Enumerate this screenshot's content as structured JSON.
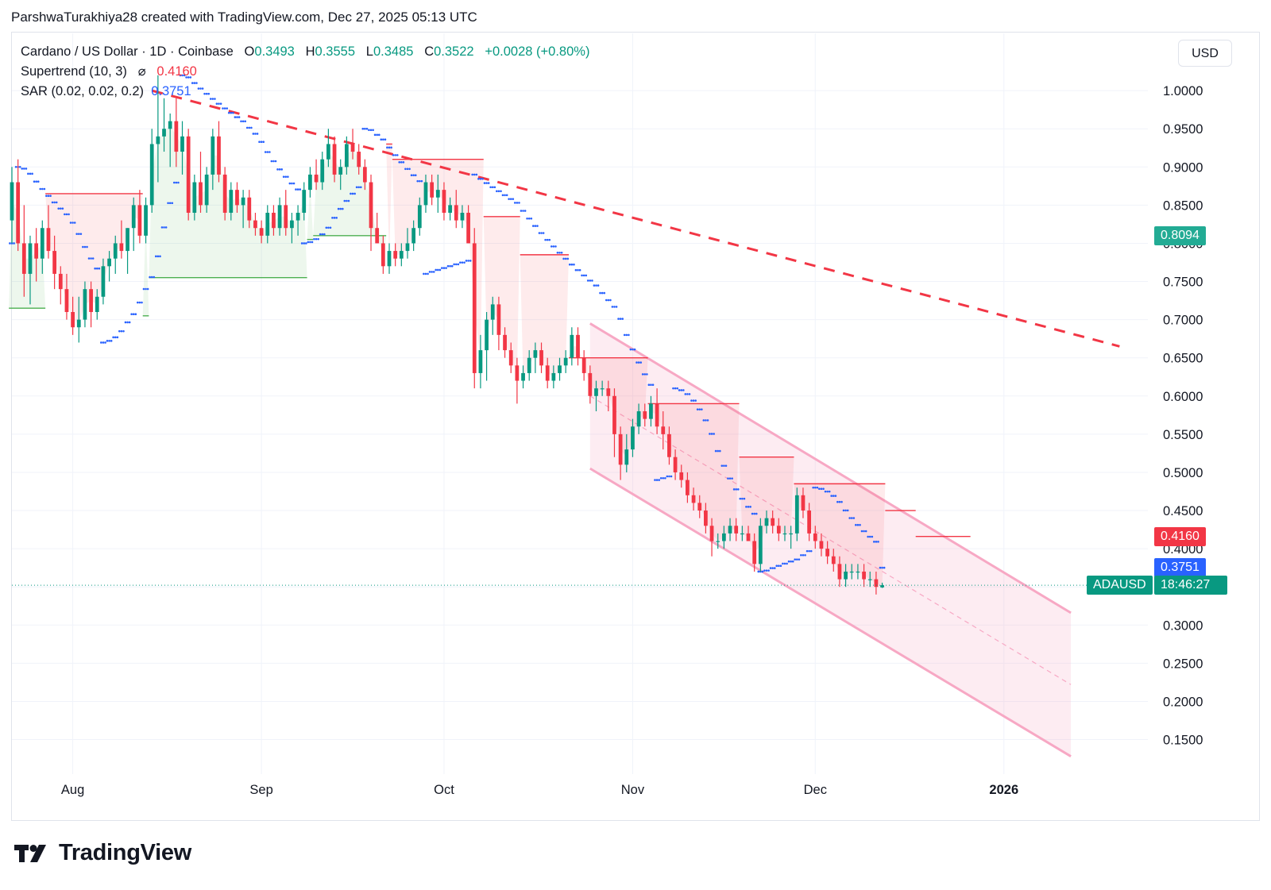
{
  "header": {
    "credit": "ParshwaTurakhiya28 created with TradingView.com, Dec 27, 2025 05:13 UTC"
  },
  "legend": {
    "symbol": "Cardano / US Dollar · 1D · Coinbase",
    "o_label": "O",
    "o": "0.3493",
    "h_label": "H",
    "h": "0.3555",
    "l_label": "L",
    "l": "0.3485",
    "c_label": "C",
    "c": "0.3522",
    "change": "+0.0028 (+0.80%)",
    "supertrend_label": "Supertrend (10, 3)",
    "supertrend_icon": "hidden-eye-icon",
    "supertrend_value": "0.4160",
    "sar_label": "SAR (0.02, 0.02, 0.2)",
    "sar_value": "0.3751"
  },
  "currency_button": "USD",
  "price_tags": {
    "level": "0.8094",
    "supertrend": "0.4160",
    "sar": "0.3751",
    "symbol": "ADAUSD",
    "countdown": "18:46:27"
  },
  "brand": {
    "name": "TradingView",
    "icon": "tradingview-logo-icon"
  },
  "colors": {
    "up": "#089981",
    "down": "#f23645",
    "sar": "#2962ff",
    "channel": "#f7a8c4",
    "level": "#22ab94"
  },
  "chart_data": {
    "type": "candlestick",
    "symbol": "ADAUSD",
    "y_ticks": [
      "1.0000",
      "0.9500",
      "0.9000",
      "0.8500",
      "0.8000",
      "0.7500",
      "0.7000",
      "0.6500",
      "0.6000",
      "0.5500",
      "0.5000",
      "0.4500",
      "0.4000",
      "0.3500",
      "0.3000",
      "0.2500",
      "0.2000",
      "0.1500"
    ],
    "ylim": [
      0.11,
      1.075
    ],
    "x_ticks": [
      {
        "label": "Aug",
        "date": "2025-08-01"
      },
      {
        "label": "Sep",
        "date": "2025-09-01"
      },
      {
        "label": "Oct",
        "date": "2025-10-01"
      },
      {
        "label": "Nov",
        "date": "2025-11-01"
      },
      {
        "label": "Dec",
        "date": "2025-12-01"
      },
      {
        "label": "2026",
        "date": "2026-01-01",
        "bold": true
      }
    ],
    "xlim": [
      "2025-07-22",
      "2026-01-24"
    ],
    "start_date": "2025-07-22",
    "candles": [
      [
        0.83,
        0.9,
        0.8,
        0.88
      ],
      [
        0.88,
        0.91,
        0.79,
        0.8
      ],
      [
        0.8,
        0.85,
        0.73,
        0.76
      ],
      [
        0.76,
        0.81,
        0.72,
        0.8
      ],
      [
        0.8,
        0.82,
        0.75,
        0.78
      ],
      [
        0.78,
        0.83,
        0.76,
        0.82
      ],
      [
        0.82,
        0.85,
        0.78,
        0.79
      ],
      [
        0.79,
        0.81,
        0.74,
        0.76
      ],
      [
        0.76,
        0.77,
        0.72,
        0.74
      ],
      [
        0.74,
        0.76,
        0.7,
        0.71
      ],
      [
        0.71,
        0.73,
        0.68,
        0.69
      ],
      [
        0.69,
        0.73,
        0.67,
        0.7
      ],
      [
        0.7,
        0.75,
        0.69,
        0.74
      ],
      [
        0.74,
        0.75,
        0.69,
        0.71
      ],
      [
        0.71,
        0.74,
        0.7,
        0.73
      ],
      [
        0.73,
        0.78,
        0.72,
        0.77
      ],
      [
        0.77,
        0.79,
        0.75,
        0.78
      ],
      [
        0.78,
        0.81,
        0.76,
        0.8
      ],
      [
        0.8,
        0.83,
        0.78,
        0.79
      ],
      [
        0.79,
        0.82,
        0.76,
        0.82
      ],
      [
        0.82,
        0.86,
        0.79,
        0.85
      ],
      [
        0.85,
        0.87,
        0.8,
        0.81
      ],
      [
        0.81,
        0.86,
        0.8,
        0.85
      ],
      [
        0.85,
        0.95,
        0.84,
        0.93
      ],
      [
        0.93,
        1.02,
        0.88,
        0.94
      ],
      [
        0.94,
        0.99,
        0.92,
        0.95
      ],
      [
        0.95,
        0.97,
        0.9,
        0.96
      ],
      [
        0.96,
        0.99,
        0.9,
        0.92
      ],
      [
        0.92,
        0.96,
        0.89,
        0.94
      ],
      [
        0.94,
        0.95,
        0.83,
        0.84
      ],
      [
        0.84,
        0.89,
        0.83,
        0.88
      ],
      [
        0.88,
        0.92,
        0.84,
        0.85
      ],
      [
        0.85,
        0.9,
        0.84,
        0.89
      ],
      [
        0.89,
        0.95,
        0.87,
        0.94
      ],
      [
        0.94,
        0.96,
        0.88,
        0.89
      ],
      [
        0.89,
        0.9,
        0.83,
        0.84
      ],
      [
        0.84,
        0.88,
        0.83,
        0.87
      ],
      [
        0.87,
        0.88,
        0.84,
        0.85
      ],
      [
        0.85,
        0.87,
        0.82,
        0.86
      ],
      [
        0.86,
        0.87,
        0.82,
        0.83
      ],
      [
        0.83,
        0.84,
        0.81,
        0.82
      ],
      [
        0.82,
        0.83,
        0.8,
        0.81
      ],
      [
        0.81,
        0.85,
        0.8,
        0.84
      ],
      [
        0.84,
        0.85,
        0.81,
        0.82
      ],
      [
        0.82,
        0.86,
        0.81,
        0.85
      ],
      [
        0.85,
        0.87,
        0.81,
        0.82
      ],
      [
        0.82,
        0.84,
        0.8,
        0.83
      ],
      [
        0.83,
        0.85,
        0.81,
        0.84
      ],
      [
        0.84,
        0.88,
        0.83,
        0.87
      ],
      [
        0.87,
        0.9,
        0.86,
        0.89
      ],
      [
        0.89,
        0.91,
        0.87,
        0.88
      ],
      [
        0.88,
        0.92,
        0.87,
        0.91
      ],
      [
        0.91,
        0.95,
        0.9,
        0.93
      ],
      [
        0.93,
        0.94,
        0.88,
        0.89
      ],
      [
        0.89,
        0.91,
        0.87,
        0.9
      ],
      [
        0.9,
        0.94,
        0.89,
        0.93
      ],
      [
        0.93,
        0.95,
        0.91,
        0.92
      ],
      [
        0.92,
        0.93,
        0.89,
        0.9
      ],
      [
        0.9,
        0.91,
        0.87,
        0.88
      ],
      [
        0.88,
        0.89,
        0.79,
        0.82
      ],
      [
        0.82,
        0.84,
        0.8,
        0.8
      ],
      [
        0.8,
        0.81,
        0.76,
        0.77
      ],
      [
        0.77,
        0.8,
        0.76,
        0.79
      ],
      [
        0.79,
        0.8,
        0.77,
        0.78
      ],
      [
        0.78,
        0.8,
        0.77,
        0.79
      ],
      [
        0.79,
        0.82,
        0.78,
        0.8
      ],
      [
        0.8,
        0.83,
        0.79,
        0.82
      ],
      [
        0.82,
        0.86,
        0.81,
        0.85
      ],
      [
        0.85,
        0.89,
        0.84,
        0.88
      ],
      [
        0.88,
        0.89,
        0.85,
        0.86
      ],
      [
        0.86,
        0.89,
        0.84,
        0.87
      ],
      [
        0.87,
        0.88,
        0.83,
        0.84
      ],
      [
        0.84,
        0.86,
        0.83,
        0.85
      ],
      [
        0.85,
        0.87,
        0.82,
        0.83
      ],
      [
        0.83,
        0.85,
        0.82,
        0.84
      ],
      [
        0.84,
        0.85,
        0.8,
        0.8
      ],
      [
        0.8,
        0.82,
        0.61,
        0.63
      ],
      [
        0.63,
        0.68,
        0.61,
        0.66
      ],
      [
        0.66,
        0.71,
        0.62,
        0.7
      ],
      [
        0.7,
        0.73,
        0.68,
        0.72
      ],
      [
        0.72,
        0.73,
        0.66,
        0.68
      ],
      [
        0.68,
        0.69,
        0.65,
        0.66
      ],
      [
        0.66,
        0.67,
        0.63,
        0.64
      ],
      [
        0.64,
        0.65,
        0.59,
        0.62
      ],
      [
        0.62,
        0.64,
        0.61,
        0.63
      ],
      [
        0.63,
        0.66,
        0.62,
        0.65
      ],
      [
        0.65,
        0.67,
        0.63,
        0.66
      ],
      [
        0.66,
        0.67,
        0.63,
        0.64
      ],
      [
        0.64,
        0.65,
        0.61,
        0.62
      ],
      [
        0.62,
        0.64,
        0.61,
        0.63
      ],
      [
        0.63,
        0.65,
        0.62,
        0.64
      ],
      [
        0.64,
        0.66,
        0.63,
        0.65
      ],
      [
        0.65,
        0.69,
        0.64,
        0.68
      ],
      [
        0.68,
        0.69,
        0.64,
        0.65
      ],
      [
        0.65,
        0.66,
        0.62,
        0.63
      ],
      [
        0.63,
        0.64,
        0.59,
        0.6
      ],
      [
        0.6,
        0.62,
        0.58,
        0.61
      ],
      [
        0.61,
        0.62,
        0.6,
        0.61
      ],
      [
        0.61,
        0.62,
        0.58,
        0.6
      ],
      [
        0.6,
        0.61,
        0.52,
        0.55
      ],
      [
        0.55,
        0.56,
        0.49,
        0.51
      ],
      [
        0.51,
        0.55,
        0.5,
        0.53
      ],
      [
        0.53,
        0.57,
        0.52,
        0.56
      ],
      [
        0.56,
        0.59,
        0.55,
        0.58
      ],
      [
        0.58,
        0.59,
        0.56,
        0.57
      ],
      [
        0.57,
        0.6,
        0.56,
        0.59
      ],
      [
        0.59,
        0.61,
        0.55,
        0.56
      ],
      [
        0.56,
        0.58,
        0.53,
        0.55
      ],
      [
        0.55,
        0.56,
        0.51,
        0.52
      ],
      [
        0.52,
        0.53,
        0.49,
        0.5
      ],
      [
        0.5,
        0.51,
        0.48,
        0.49
      ],
      [
        0.49,
        0.5,
        0.46,
        0.47
      ],
      [
        0.47,
        0.48,
        0.45,
        0.46
      ],
      [
        0.46,
        0.47,
        0.44,
        0.45
      ],
      [
        0.45,
        0.46,
        0.42,
        0.43
      ],
      [
        0.43,
        0.44,
        0.39,
        0.41
      ],
      [
        0.41,
        0.42,
        0.4,
        0.41
      ],
      [
        0.41,
        0.43,
        0.4,
        0.42
      ],
      [
        0.42,
        0.44,
        0.41,
        0.43
      ],
      [
        0.43,
        0.44,
        0.41,
        0.42
      ],
      [
        0.42,
        0.43,
        0.41,
        0.42
      ],
      [
        0.42,
        0.43,
        0.41,
        0.41
      ],
      [
        0.41,
        0.42,
        0.37,
        0.38
      ],
      [
        0.38,
        0.44,
        0.37,
        0.43
      ],
      [
        0.43,
        0.45,
        0.42,
        0.44
      ],
      [
        0.44,
        0.45,
        0.42,
        0.43
      ],
      [
        0.43,
        0.44,
        0.41,
        0.42
      ],
      [
        0.42,
        0.43,
        0.41,
        0.42
      ],
      [
        0.42,
        0.43,
        0.4,
        0.42
      ],
      [
        0.42,
        0.48,
        0.41,
        0.47
      ],
      [
        0.47,
        0.48,
        0.44,
        0.45
      ],
      [
        0.45,
        0.46,
        0.41,
        0.42
      ],
      [
        0.42,
        0.43,
        0.4,
        0.41
      ],
      [
        0.41,
        0.42,
        0.39,
        0.4
      ],
      [
        0.4,
        0.41,
        0.38,
        0.39
      ],
      [
        0.39,
        0.4,
        0.37,
        0.38
      ],
      [
        0.38,
        0.39,
        0.35,
        0.36
      ],
      [
        0.36,
        0.38,
        0.35,
        0.37
      ],
      [
        0.37,
        0.38,
        0.36,
        0.37
      ],
      [
        0.37,
        0.38,
        0.36,
        0.37
      ],
      [
        0.37,
        0.38,
        0.35,
        0.36
      ],
      [
        0.36,
        0.37,
        0.35,
        0.36
      ],
      [
        0.36,
        0.37,
        0.34,
        0.35
      ],
      [
        0.3493,
        0.3555,
        0.3485,
        0.3522
      ]
    ],
    "supertrend": [
      {
        "from": "2025-07-22",
        "to": "2025-07-27",
        "value": 0.715,
        "trend": "up"
      },
      {
        "from": "2025-07-28",
        "to": "2025-08-12",
        "value": 0.865,
        "trend": "down"
      },
      {
        "from": "2025-08-13",
        "to": "2025-08-13",
        "value": 0.705,
        "trend": "up"
      },
      {
        "from": "2025-08-14",
        "to": "2025-09-08",
        "value": 0.755,
        "trend": "up"
      },
      {
        "from": "2025-09-09",
        "to": "2025-09-09",
        "value": 0.805,
        "trend": "up"
      },
      {
        "from": "2025-09-10",
        "to": "2025-09-21",
        "value": 0.81,
        "trend": "up"
      },
      {
        "from": "2025-09-22",
        "to": "2025-09-22",
        "value": 0.93,
        "trend": "down"
      },
      {
        "from": "2025-09-23",
        "to": "2025-10-07",
        "value": 0.91,
        "trend": "down"
      },
      {
        "from": "2025-10-08",
        "to": "2025-10-13",
        "value": 0.835,
        "trend": "down"
      },
      {
        "from": "2025-10-14",
        "to": "2025-10-21",
        "value": 0.785,
        "trend": "down"
      },
      {
        "from": "2025-10-22",
        "to": "2025-11-03",
        "value": 0.65,
        "trend": "down"
      },
      {
        "from": "2025-11-04",
        "to": "2025-11-18",
        "value": 0.59,
        "trend": "down"
      },
      {
        "from": "2025-11-19",
        "to": "2025-11-27",
        "value": 0.52,
        "trend": "down"
      },
      {
        "from": "2025-11-28",
        "to": "2025-12-12",
        "value": 0.485,
        "trend": "down"
      },
      {
        "from": "2025-12-13",
        "to": "2025-12-17",
        "value": 0.45,
        "trend": "down"
      },
      {
        "from": "2025-12-18",
        "to": "2025-12-26",
        "value": 0.416,
        "trend": "down"
      }
    ],
    "sar_value": 0.3751,
    "trendline": {
      "start": {
        "date": "2025-08-14",
        "price": 1.0
      },
      "end": {
        "date": "2026-01-20",
        "price": 0.665
      }
    },
    "channel": {
      "upper": [
        {
          "date": "2025-10-25",
          "price": 0.695
        },
        {
          "date": "2026-01-12",
          "price": 0.316
        }
      ],
      "lower": [
        {
          "date": "2025-10-25",
          "price": 0.505
        },
        {
          "date": "2026-01-12",
          "price": 0.128
        }
      ]
    },
    "horizontal_level": 0.8094,
    "last_price": 0.3522
  }
}
